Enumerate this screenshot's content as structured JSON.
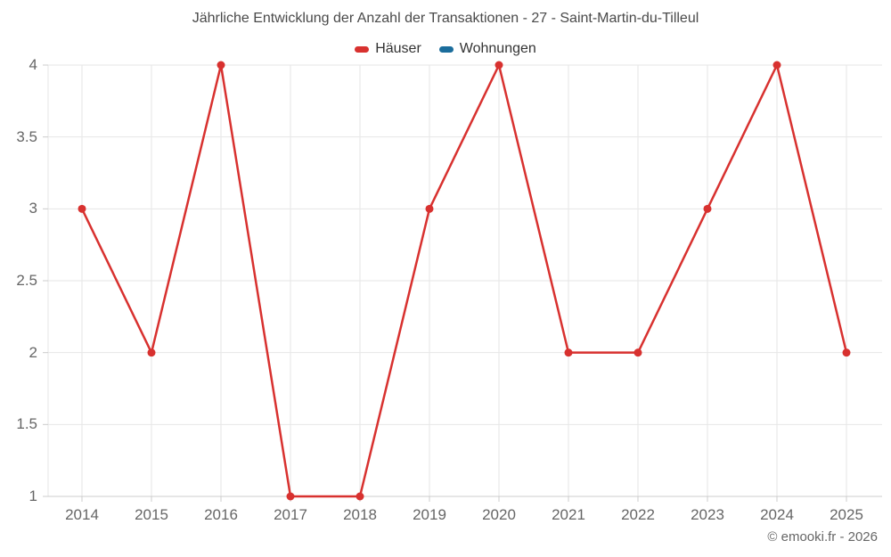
{
  "chart_data": {
    "type": "line",
    "title": "Jährliche Entwicklung der Anzahl der Transaktionen - 27 - Saint-Martin-du-Tilleul",
    "categories": [
      "2014",
      "2015",
      "2016",
      "2017",
      "2018",
      "2019",
      "2020",
      "2021",
      "2022",
      "2023",
      "2024",
      "2025"
    ],
    "series": [
      {
        "name": "Häuser",
        "color": "#d8312f",
        "values": [
          3,
          2,
          4,
          1,
          1,
          3,
          4,
          2,
          2,
          3,
          4,
          2
        ]
      },
      {
        "name": "Wohnungen",
        "color": "#1b6d9c",
        "values": []
      }
    ],
    "xlabel": "",
    "ylabel": "",
    "ylim": [
      1,
      4
    ],
    "yticks": [
      "1",
      "1.5",
      "2",
      "2.5",
      "3",
      "3.5",
      "4"
    ],
    "grid": true,
    "legend_position": "top-center",
    "gridline_color": "#e6e6e6",
    "axis_line_color": "#cccccc",
    "marker_radius": 4.5,
    "line_width": 2.5
  },
  "credits": {
    "text": "© emooki.fr - 2026"
  }
}
